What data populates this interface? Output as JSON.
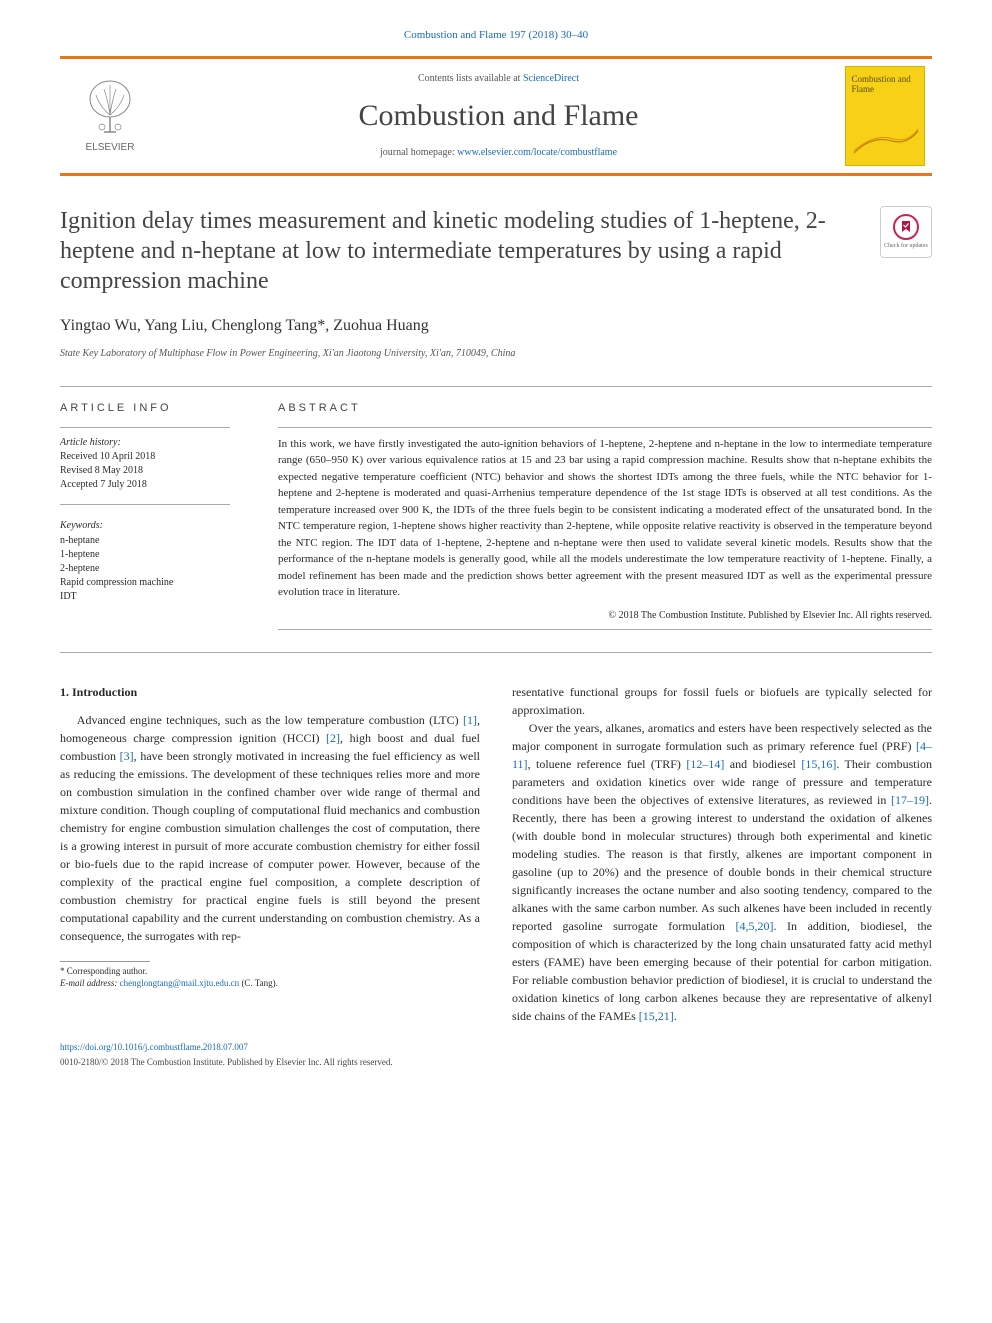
{
  "running_head": "Combustion and Flame 197 (2018) 30–40",
  "masthead": {
    "publisher": "ELSEVIER",
    "contents_prefix": "Contents lists available at ",
    "contents_link": "ScienceDirect",
    "journal_name": "Combustion and Flame",
    "homepage_prefix": "journal homepage: ",
    "homepage_link": "www.elsevier.com/locate/combustflame",
    "cover_title": "Combustion and Flame",
    "cover_bg_color": "#f7d117"
  },
  "crossmark_label": "Check for updates",
  "title": "Ignition delay times measurement and kinetic modeling studies of 1-heptene, 2-heptene and n-heptane at low to intermediate temperatures by using a rapid compression machine",
  "authors": "Yingtao Wu, Yang Liu, Chenglong Tang*, Zuohua Huang",
  "affiliation": "State Key Laboratory of Multiphase Flow in Power Engineering, Xi'an Jiaotong University, Xi'an, 710049, China",
  "info": {
    "heading": "ARTICLE INFO",
    "history_label": "Article history:",
    "received": "Received 10 April 2018",
    "revised": "Revised 8 May 2018",
    "accepted": "Accepted 7 July 2018",
    "keywords_label": "Keywords:",
    "keywords": [
      "n-heptane",
      "1-heptene",
      "2-heptene",
      "Rapid compression machine",
      "IDT"
    ]
  },
  "abstract": {
    "heading": "ABSTRACT",
    "text": "In this work, we have firstly investigated the auto-ignition behaviors of 1-heptene, 2-heptene and n-heptane in the low to intermediate temperature range (650–950 K) over various equivalence ratios at 15 and 23 bar using a rapid compression machine. Results show that n-heptane exhibits the expected negative temperature coefficient (NTC) behavior and shows the shortest IDTs among the three fuels, while the NTC behavior for 1-heptene and 2-heptene is moderated and quasi-Arrhenius temperature dependence of the 1st stage IDTs is observed at all test conditions. As the temperature increased over 900 K, the IDTs of the three fuels begin to be consistent indicating a moderated effect of the unsaturated bond. In the NTC temperature region, 1-heptene shows higher reactivity than 2-heptene, while opposite relative reactivity is observed in the temperature beyond the NTC region. The IDT data of 1-heptene, 2-heptene and n-heptane were then used to validate several kinetic models. Results show that the performance of the n-heptane models is generally good, while all the models underestimate the low temperature reactivity of 1-heptene. Finally, a model refinement has been made and the prediction shows better agreement with the present measured IDT as well as the experimental pressure evolution trace in literature.",
    "copyright": "© 2018 The Combustion Institute. Published by Elsevier Inc. All rights reserved."
  },
  "body": {
    "section_heading": "1. Introduction",
    "left_col": "Advanced engine techniques, such as the low temperature combustion (LTC) [1], homogeneous charge compression ignition (HCCI) [2], high boost and dual fuel combustion [3], have been strongly motivated in increasing the fuel efficiency as well as reducing the emissions. The development of these techniques relies more and more on combustion simulation in the confined chamber over wide range of thermal and mixture condition. Though coupling of computational fluid mechanics and combustion chemistry for engine combustion simulation challenges the cost of computation, there is a growing interest in pursuit of more accurate combustion chemistry for either fossil or bio-fuels due to the rapid increase of computer power. However, because of the complexity of the practical engine fuel composition, a complete description of combustion chemistry for practical engine fuels is still beyond the present computational capability and the current understanding on combustion chemistry. As a consequence, the surrogates with rep-",
    "right_col_p1": "resentative functional groups for fossil fuels or biofuels are typically selected for approximation.",
    "right_col_p2": "Over the years, alkanes, aromatics and esters have been respectively selected as the major component in surrogate formulation such as primary reference fuel (PRF) [4–11], toluene reference fuel (TRF) [12–14] and biodiesel [15,16]. Their combustion parameters and oxidation kinetics over wide range of pressure and temperature conditions have been the objectives of extensive literatures, as reviewed in [17–19]. Recently, there has been a growing interest to understand the oxidation of alkenes (with double bond in molecular structures) through both experimental and kinetic modeling studies. The reason is that firstly, alkenes are important component in gasoline (up to 20%) and the presence of double bonds in their chemical structure significantly increases the octane number and also sooting tendency, compared to the alkanes with the same carbon number. As such alkenes have been included in recently reported gasoline surrogate formulation [4,5,20]. In addition, biodiesel, the composition of which is characterized by the long chain unsaturated fatty acid methyl esters (FAME) have been emerging because of their potential for carbon mitigation. For reliable combustion behavior prediction of biodiesel, it is crucial to understand the oxidation kinetics of long carbon alkenes because they are representative of alkenyl side chains of the FAMEs [15,21]."
  },
  "footnote": {
    "corr": "* Corresponding author.",
    "email_label": "E-mail address: ",
    "email": "chenglongtang@mail.xjtu.edu.cn",
    "email_suffix": " (C. Tang)."
  },
  "footer": {
    "doi": "https://doi.org/10.1016/j.combustflame.2018.07.007",
    "issn_line": "0010-2180/© 2018 The Combustion Institute. Published by Elsevier Inc. All rights reserved."
  },
  "ref_color": "#1a6bb8",
  "accent_color": "#e77817"
}
